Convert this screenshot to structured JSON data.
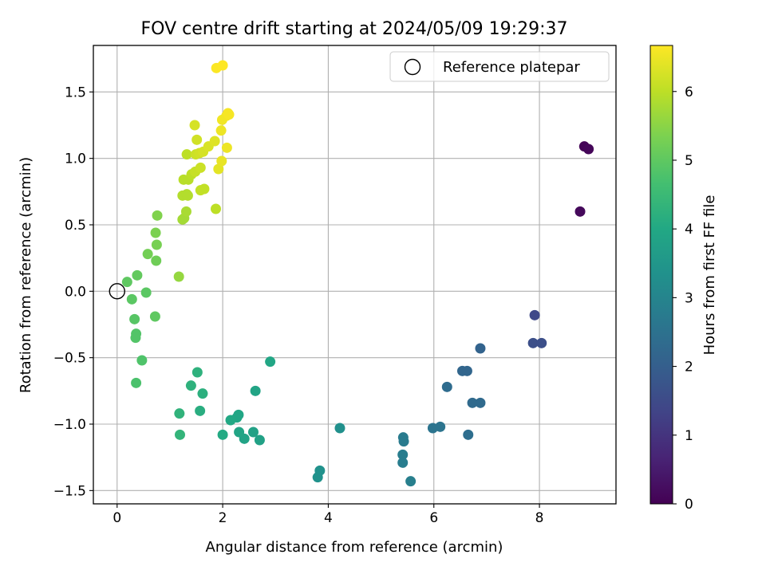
{
  "chart_data": {
    "type": "scatter",
    "title": "FOV centre drift starting at 2024/05/09 19:29:37",
    "xlabel": "Angular distance from reference (arcmin)",
    "ylabel": "Rotation from reference (arcmin)",
    "xlim": [
      -0.45,
      9.45
    ],
    "ylim": [
      -1.6,
      1.85
    ],
    "x_ticks": [
      0,
      2,
      4,
      6,
      8
    ],
    "y_ticks": [
      -1.5,
      -1.0,
      -0.5,
      0.0,
      0.5,
      1.0,
      1.5
    ],
    "x_tick_labels": [
      "0",
      "2",
      "4",
      "6",
      "8"
    ],
    "y_tick_labels": [
      "−1.5",
      "−1.0",
      "−0.5",
      "0.0",
      "0.5",
      "1.0",
      "1.5"
    ],
    "grid": true,
    "legend": {
      "position": "top-right",
      "entries": [
        "Reference platepar"
      ]
    },
    "reference_point": {
      "x": 0,
      "y": 0
    },
    "colorbar": {
      "label": "Hours from first FF file",
      "range": [
        0,
        6.67
      ],
      "ticks": [
        0,
        1,
        2,
        3,
        4,
        5,
        6
      ],
      "tick_labels": [
        "0",
        "1",
        "2",
        "3",
        "4",
        "5",
        "6"
      ],
      "colormap": "viridis"
    },
    "series": [
      {
        "points": [
          {
            "x": 8.85,
            "y": 1.09,
            "c": 0.05
          },
          {
            "x": 8.93,
            "y": 1.07,
            "c": 0.1
          },
          {
            "x": 8.77,
            "y": 0.6,
            "c": 0.15
          },
          {
            "x": 7.91,
            "y": -0.18,
            "c": 1.45
          },
          {
            "x": 7.88,
            "y": -0.39,
            "c": 1.6
          },
          {
            "x": 8.04,
            "y": -0.39,
            "c": 1.6
          },
          {
            "x": 6.88,
            "y": -0.43,
            "c": 2.1
          },
          {
            "x": 6.54,
            "y": -0.6,
            "c": 2.2
          },
          {
            "x": 6.63,
            "y": -0.6,
            "c": 2.2
          },
          {
            "x": 6.25,
            "y": -0.72,
            "c": 2.35
          },
          {
            "x": 6.73,
            "y": -0.84,
            "c": 2.3
          },
          {
            "x": 6.88,
            "y": -0.84,
            "c": 2.3
          },
          {
            "x": 6.65,
            "y": -1.08,
            "c": 2.4
          },
          {
            "x": 5.98,
            "y": -1.03,
            "c": 2.55
          },
          {
            "x": 6.12,
            "y": -1.02,
            "c": 2.55
          },
          {
            "x": 5.42,
            "y": -1.1,
            "c": 2.75
          },
          {
            "x": 5.43,
            "y": -1.13,
            "c": 2.75
          },
          {
            "x": 5.41,
            "y": -1.23,
            "c": 2.8
          },
          {
            "x": 5.41,
            "y": -1.29,
            "c": 2.8
          },
          {
            "x": 5.56,
            "y": -1.43,
            "c": 2.85
          },
          {
            "x": 4.22,
            "y": -1.03,
            "c": 3.3
          },
          {
            "x": 3.84,
            "y": -1.35,
            "c": 3.35
          },
          {
            "x": 3.8,
            "y": -1.4,
            "c": 3.35
          },
          {
            "x": 2.9,
            "y": -0.53,
            "c": 3.95
          },
          {
            "x": 2.62,
            "y": -0.75,
            "c": 3.9
          },
          {
            "x": 2.7,
            "y": -1.12,
            "c": 3.8
          },
          {
            "x": 2.58,
            "y": -1.06,
            "c": 3.8
          },
          {
            "x": 2.41,
            "y": -1.11,
            "c": 3.85
          },
          {
            "x": 2.31,
            "y": -1.06,
            "c": 3.9
          },
          {
            "x": 2.3,
            "y": -0.93,
            "c": 3.95
          },
          {
            "x": 2.27,
            "y": -0.95,
            "c": 3.95
          },
          {
            "x": 2.15,
            "y": -0.97,
            "c": 4.0
          },
          {
            "x": 2.0,
            "y": -1.08,
            "c": 4.05
          },
          {
            "x": 1.57,
            "y": -0.9,
            "c": 4.15
          },
          {
            "x": 1.62,
            "y": -0.77,
            "c": 4.2
          },
          {
            "x": 1.52,
            "y": -0.61,
            "c": 4.25
          },
          {
            "x": 1.4,
            "y": -0.71,
            "c": 4.25
          },
          {
            "x": 1.18,
            "y": -0.92,
            "c": 4.3
          },
          {
            "x": 1.19,
            "y": -1.08,
            "c": 4.35
          },
          {
            "x": 0.36,
            "y": -0.69,
            "c": 4.75
          },
          {
            "x": 0.47,
            "y": -0.52,
            "c": 4.8
          },
          {
            "x": 0.36,
            "y": -0.32,
            "c": 4.85
          },
          {
            "x": 0.35,
            "y": -0.35,
            "c": 4.85
          },
          {
            "x": 0.33,
            "y": -0.21,
            "c": 4.9
          },
          {
            "x": 0.28,
            "y": -0.06,
            "c": 4.95
          },
          {
            "x": 0.55,
            "y": -0.01,
            "c": 4.95
          },
          {
            "x": 0.19,
            "y": 0.07,
            "c": 5.0
          },
          {
            "x": 0.38,
            "y": 0.12,
            "c": 5.05
          },
          {
            "x": 0.72,
            "y": -0.19,
            "c": 5.0
          },
          {
            "x": 0.74,
            "y": 0.23,
            "c": 5.2
          },
          {
            "x": 0.58,
            "y": 0.28,
            "c": 5.25
          },
          {
            "x": 0.75,
            "y": 0.35,
            "c": 5.3
          },
          {
            "x": 0.73,
            "y": 0.44,
            "c": 5.35
          },
          {
            "x": 0.76,
            "y": 0.57,
            "c": 5.4
          },
          {
            "x": 1.17,
            "y": 0.11,
            "c": 5.6
          },
          {
            "x": 1.24,
            "y": 0.54,
            "c": 5.75
          },
          {
            "x": 1.27,
            "y": 0.55,
            "c": 5.75
          },
          {
            "x": 1.31,
            "y": 0.6,
            "c": 5.8
          },
          {
            "x": 1.87,
            "y": 0.62,
            "c": 6.0
          },
          {
            "x": 1.24,
            "y": 0.72,
            "c": 5.9
          },
          {
            "x": 1.32,
            "y": 0.73,
            "c": 5.9
          },
          {
            "x": 1.34,
            "y": 0.72,
            "c": 5.9
          },
          {
            "x": 1.58,
            "y": 0.76,
            "c": 6.05
          },
          {
            "x": 1.65,
            "y": 0.77,
            "c": 6.05
          },
          {
            "x": 1.26,
            "y": 0.84,
            "c": 5.95
          },
          {
            "x": 1.35,
            "y": 0.84,
            "c": 5.95
          },
          {
            "x": 1.41,
            "y": 0.88,
            "c": 6.0
          },
          {
            "x": 1.48,
            "y": 0.9,
            "c": 6.1
          },
          {
            "x": 1.58,
            "y": 0.93,
            "c": 6.15
          },
          {
            "x": 1.32,
            "y": 1.03,
            "c": 6.0
          },
          {
            "x": 1.49,
            "y": 1.03,
            "c": 6.15
          },
          {
            "x": 1.56,
            "y": 1.04,
            "c": 6.2
          },
          {
            "x": 1.63,
            "y": 1.05,
            "c": 6.25
          },
          {
            "x": 1.73,
            "y": 1.09,
            "c": 6.3
          },
          {
            "x": 1.85,
            "y": 1.13,
            "c": 6.35
          },
          {
            "x": 1.92,
            "y": 0.92,
            "c": 6.4
          },
          {
            "x": 1.98,
            "y": 0.98,
            "c": 6.45
          },
          {
            "x": 2.08,
            "y": 1.08,
            "c": 6.5
          },
          {
            "x": 1.51,
            "y": 1.14,
            "c": 6.2
          },
          {
            "x": 1.47,
            "y": 1.25,
            "c": 6.25
          },
          {
            "x": 1.97,
            "y": 1.21,
            "c": 6.5
          },
          {
            "x": 1.99,
            "y": 1.29,
            "c": 6.55
          },
          {
            "x": 2.07,
            "y": 1.32,
            "c": 6.55
          },
          {
            "x": 2.1,
            "y": 1.34,
            "c": 6.6
          },
          {
            "x": 2.12,
            "y": 1.33,
            "c": 6.6
          },
          {
            "x": 1.88,
            "y": 1.68,
            "c": 6.65
          },
          {
            "x": 2.0,
            "y": 1.7,
            "c": 6.67
          }
        ]
      }
    ]
  }
}
